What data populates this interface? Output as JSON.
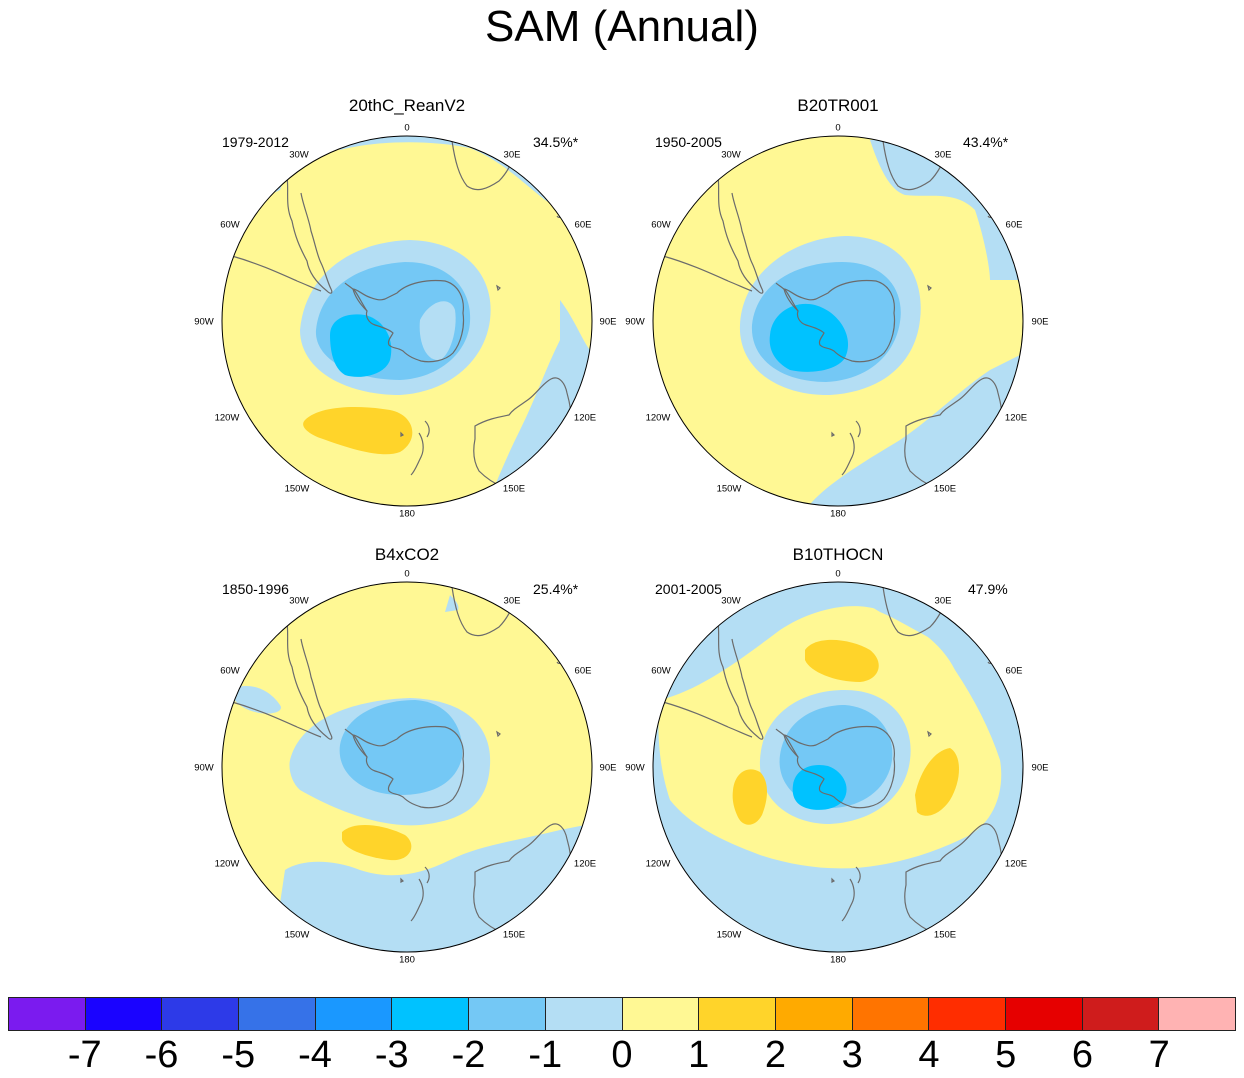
{
  "title": "SAM (Annual)",
  "colors": {
    "levels": [
      "#7b1bef",
      "#1a03ff",
      "#2d3ae8",
      "#3672e8",
      "#1a98ff",
      "#00c2ff",
      "#74c8f5",
      "#b4def4",
      "#fff894",
      "#ffd42a",
      "#ffaa00",
      "#ff7400",
      "#ff2d00",
      "#e60000",
      "#cf1c1c",
      "#ffb3b3"
    ],
    "coast": "#6b6b6b"
  },
  "panels": [
    {
      "title": "20thC_ReanV2",
      "period": "1979-2012",
      "percent": "34.5%*"
    },
    {
      "title": "B20TR001",
      "period": "1950-2005",
      "percent": "43.4%*"
    },
    {
      "title": "B4xCO2",
      "period": "1850-1996",
      "percent": "25.4%*"
    },
    {
      "title": "B10THOCN",
      "period": "2001-2005",
      "percent": "47.9%"
    }
  ],
  "longitude_labels": {
    "n": "0",
    "e30": "30E",
    "e60": "60E",
    "e90": "90E",
    "e120": "120E",
    "e150": "150E",
    "s": "180",
    "w150": "150W",
    "w120": "120W",
    "w90": "90W",
    "w60": "60W",
    "w30": "30W"
  },
  "colorbar": {
    "labels": [
      "-7",
      "-6",
      "-5",
      "-4",
      "-3",
      "-2",
      "-1",
      "0",
      "1",
      "2",
      "3",
      "4",
      "5",
      "6",
      "7"
    ]
  }
}
